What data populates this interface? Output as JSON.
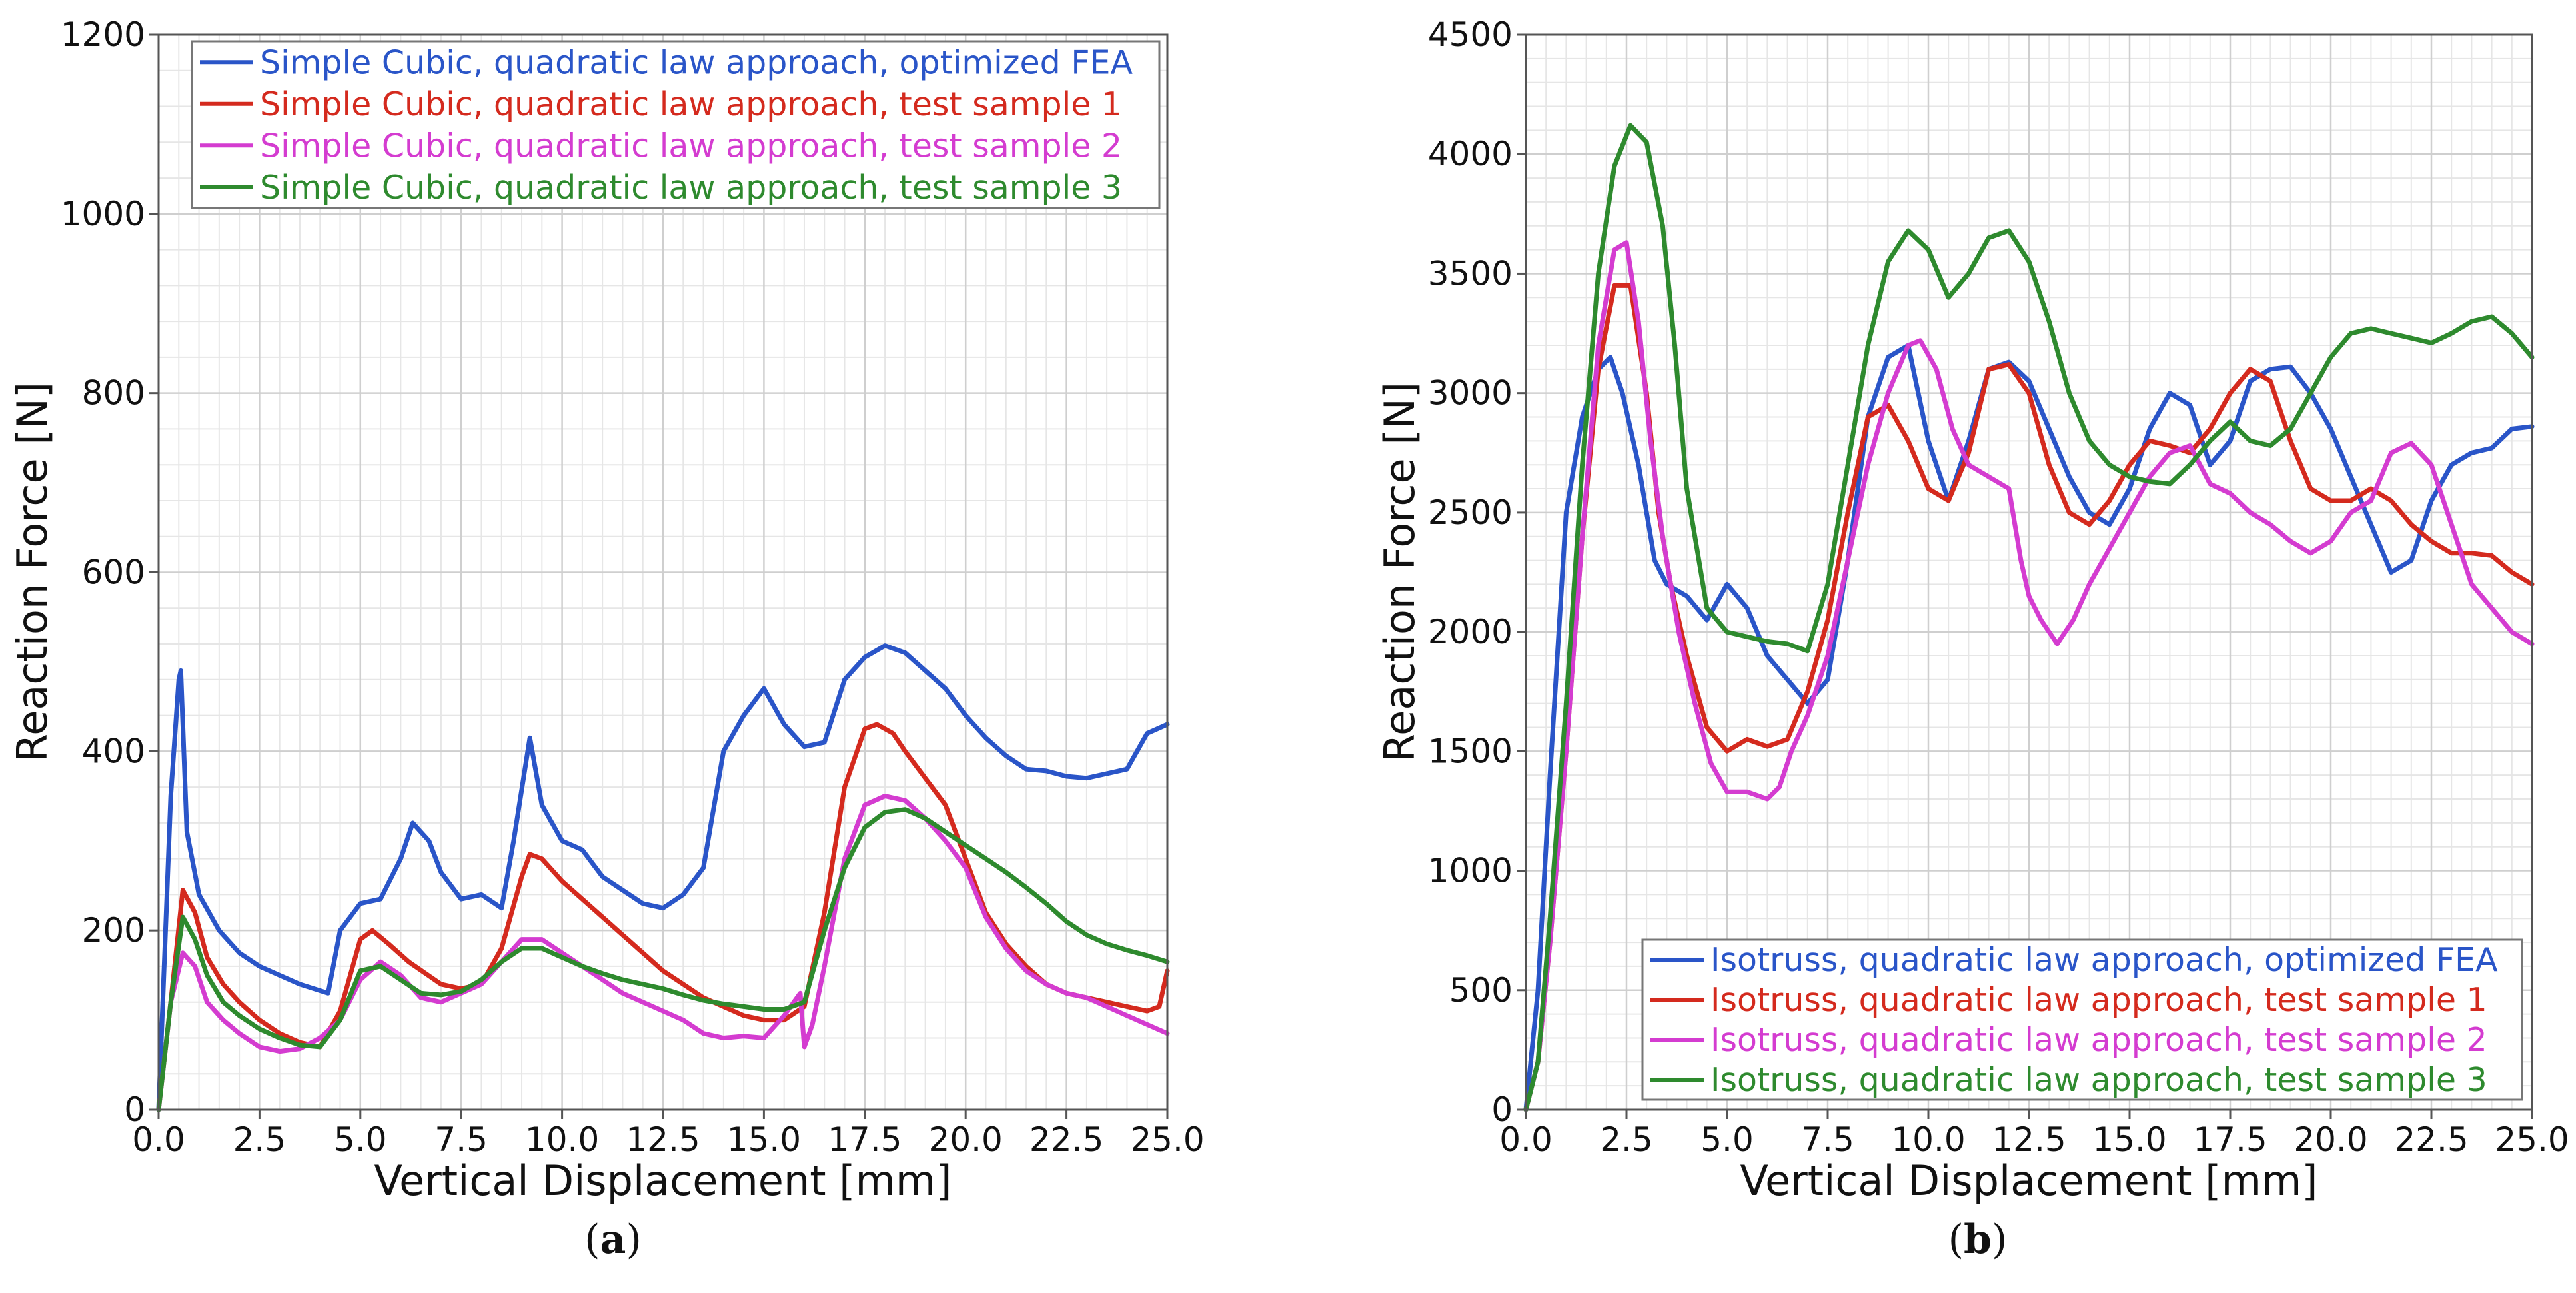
{
  "chart_data": [
    {
      "type": "line",
      "panel_label": "a",
      "xlabel": "Vertical Displacement [mm]",
      "ylabel": "Reaction Force [N]",
      "xlim": [
        0,
        25
      ],
      "ylim": [
        0,
        1200
      ],
      "xticks": [
        "0.0",
        "2.5",
        "5.0",
        "7.5",
        "10.0",
        "12.5",
        "15.0",
        "17.5",
        "20.0",
        "22.5",
        "25.0"
      ],
      "yticks": [
        "0",
        "200",
        "400",
        "600",
        "800",
        "1000",
        "1200"
      ],
      "grid": true,
      "legend_position": "top-right",
      "series": [
        {
          "name": "Simple Cubic, quadratic law approach, optimized FEA",
          "color": "#2a55c8",
          "x": [
            0,
            0.3,
            0.5,
            0.55,
            0.7,
            1.0,
            1.5,
            2.0,
            2.5,
            3.0,
            3.5,
            4.2,
            4.5,
            5.0,
            5.5,
            6.0,
            6.3,
            6.7,
            7.0,
            7.5,
            8.0,
            8.5,
            8.8,
            9.2,
            9.5,
            10.0,
            10.5,
            11.0,
            11.5,
            12.0,
            12.5,
            13.0,
            13.5,
            14.0,
            14.5,
            15.0,
            15.5,
            16.0,
            16.5,
            17.0,
            17.5,
            18.0,
            18.5,
            19.0,
            19.5,
            20.0,
            20.5,
            21.0,
            21.5,
            22.0,
            22.5,
            23.0,
            23.5,
            24.0,
            24.5,
            25.0
          ],
          "y": [
            0,
            350,
            480,
            490,
            310,
            240,
            200,
            175,
            160,
            150,
            140,
            130,
            200,
            230,
            235,
            280,
            320,
            300,
            265,
            235,
            240,
            225,
            300,
            415,
            340,
            300,
            290,
            260,
            245,
            230,
            225,
            240,
            270,
            400,
            440,
            470,
            430,
            405,
            410,
            480,
            505,
            518,
            510,
            490,
            470,
            440,
            415,
            395,
            380,
            378,
            372,
            370,
            375,
            380,
            420,
            430
          ]
        },
        {
          "name": "Simple Cubic, quadratic law approach, test sample 1",
          "color": "#d42a1e",
          "x": [
            0,
            0.3,
            0.6,
            0.9,
            1.2,
            1.6,
            2.0,
            2.5,
            3.0,
            3.5,
            4.0,
            4.5,
            5.0,
            5.3,
            5.7,
            6.2,
            7.0,
            7.5,
            8.0,
            8.5,
            9.0,
            9.2,
            9.5,
            10.0,
            10.5,
            11.0,
            11.5,
            12.0,
            12.5,
            13.0,
            13.5,
            14.0,
            14.5,
            15.0,
            15.5,
            16.0,
            16.5,
            17.0,
            17.5,
            17.8,
            18.2,
            18.5,
            19.0,
            19.5,
            20.0,
            20.5,
            21.0,
            21.5,
            22.0,
            22.5,
            23.0,
            23.5,
            24.0,
            24.5,
            24.8,
            25.0
          ],
          "y": [
            0,
            120,
            245,
            220,
            170,
            140,
            120,
            100,
            85,
            75,
            70,
            110,
            190,
            200,
            185,
            165,
            140,
            135,
            140,
            180,
            260,
            285,
            280,
            255,
            235,
            215,
            195,
            175,
            155,
            140,
            125,
            115,
            105,
            100,
            100,
            115,
            220,
            360,
            425,
            430,
            420,
            400,
            370,
            340,
            280,
            220,
            185,
            160,
            140,
            130,
            125,
            120,
            115,
            110,
            115,
            155
          ]
        },
        {
          "name": "Simple Cubic, quadratic law approach, test sample 2",
          "color": "#d43cd0",
          "x": [
            0,
            0.3,
            0.6,
            0.9,
            1.2,
            1.6,
            2.0,
            2.5,
            3.0,
            3.5,
            4.0,
            4.5,
            5.0,
            5.5,
            6.0,
            6.5,
            7.0,
            7.5,
            8.0,
            8.5,
            9.0,
            9.5,
            10.0,
            10.5,
            11.0,
            11.5,
            12.0,
            12.5,
            13.0,
            13.5,
            14.0,
            14.5,
            15.0,
            15.5,
            15.9,
            16.0,
            16.2,
            16.5,
            17.0,
            17.5,
            18.0,
            18.5,
            19.0,
            19.5,
            20.0,
            20.5,
            21.0,
            21.5,
            22.0,
            22.5,
            23.0,
            23.5,
            24.0,
            24.5,
            25.0
          ],
          "y": [
            0,
            120,
            175,
            160,
            120,
            100,
            85,
            70,
            65,
            68,
            80,
            100,
            145,
            165,
            150,
            125,
            120,
            130,
            140,
            165,
            190,
            190,
            175,
            160,
            145,
            130,
            120,
            110,
            100,
            85,
            80,
            82,
            80,
            105,
            130,
            70,
            95,
            160,
            280,
            340,
            350,
            345,
            325,
            300,
            270,
            215,
            180,
            155,
            140,
            130,
            125,
            115,
            105,
            95,
            85
          ]
        },
        {
          "name": "Simple Cubic, quadratic law approach, test sample 3",
          "color": "#2e8a2e",
          "x": [
            0,
            0.3,
            0.6,
            0.9,
            1.2,
            1.6,
            2.0,
            2.5,
            3.0,
            3.5,
            4.0,
            4.5,
            5.0,
            5.5,
            6.0,
            6.5,
            7.0,
            7.5,
            8.0,
            8.5,
            9.0,
            9.5,
            10.0,
            10.5,
            11.0,
            11.5,
            12.0,
            12.5,
            13.0,
            13.5,
            14.0,
            14.5,
            15.0,
            15.5,
            16.0,
            16.5,
            17.0,
            17.5,
            18.0,
            18.5,
            19.0,
            19.5,
            20.0,
            20.5,
            21.0,
            21.5,
            22.0,
            22.5,
            23.0,
            23.5,
            24.0,
            24.5,
            25.0
          ],
          "y": [
            0,
            120,
            215,
            190,
            150,
            120,
            105,
            90,
            80,
            72,
            70,
            100,
            155,
            160,
            145,
            130,
            128,
            132,
            145,
            165,
            180,
            180,
            170,
            160,
            152,
            145,
            140,
            135,
            128,
            122,
            118,
            115,
            112,
            112,
            120,
            200,
            270,
            315,
            332,
            335,
            325,
            310,
            295,
            280,
            265,
            248,
            230,
            210,
            195,
            185,
            178,
            172,
            165
          ]
        }
      ]
    },
    {
      "type": "line",
      "panel_label": "b",
      "xlabel": "Vertical Displacement [mm]",
      "ylabel": "Reaction Force [N]",
      "xlim": [
        0,
        25
      ],
      "ylim": [
        0,
        4500
      ],
      "xticks": [
        "0.0",
        "2.5",
        "5.0",
        "7.5",
        "10.0",
        "12.5",
        "15.0",
        "17.5",
        "20.0",
        "22.5",
        "25.0"
      ],
      "yticks": [
        "0",
        "500",
        "1000",
        "1500",
        "2000",
        "2500",
        "3000",
        "3500",
        "4000",
        "4500"
      ],
      "grid": true,
      "legend_position": "bottom-right",
      "series": [
        {
          "name": "Isotruss, quadratic law approach, optimized FEA",
          "color": "#2a55c8",
          "x": [
            0,
            0.3,
            0.6,
            1.0,
            1.4,
            1.8,
            2.1,
            2.4,
            2.8,
            3.2,
            3.5,
            4.0,
            4.5,
            5.0,
            5.5,
            6.0,
            6.5,
            7.0,
            7.5,
            8.0,
            8.5,
            9.0,
            9.5,
            10.0,
            10.5,
            11.0,
            11.5,
            12.0,
            12.5,
            13.0,
            13.5,
            14.0,
            14.5,
            15.0,
            15.5,
            16.0,
            16.5,
            17.0,
            17.5,
            18.0,
            18.5,
            19.0,
            19.5,
            20.0,
            20.5,
            21.0,
            21.5,
            22.0,
            22.5,
            23.0,
            23.5,
            24.0,
            24.5,
            25.0
          ],
          "y": [
            0,
            500,
            1400,
            2500,
            2900,
            3100,
            3150,
            3000,
            2700,
            2300,
            2200,
            2150,
            2050,
            2200,
            2100,
            1900,
            1800,
            1700,
            1800,
            2300,
            2900,
            3150,
            3200,
            2800,
            2550,
            2800,
            3100,
            3130,
            3050,
            2850,
            2650,
            2500,
            2450,
            2600,
            2850,
            3000,
            2950,
            2700,
            2800,
            3050,
            3100,
            3110,
            3000,
            2850,
            2650,
            2450,
            2250,
            2300,
            2550,
            2700,
            2750,
            2770,
            2850,
            2860
          ]
        },
        {
          "name": "Isotruss, quadratic law approach, test sample 1",
          "color": "#d42a1e",
          "x": [
            0,
            0.3,
            0.6,
            1.0,
            1.4,
            1.8,
            2.2,
            2.6,
            3.0,
            3.3,
            3.6,
            4.0,
            4.5,
            5.0,
            5.5,
            6.0,
            6.5,
            7.0,
            7.5,
            8.0,
            8.5,
            9.0,
            9.5,
            10.0,
            10.5,
            11.0,
            11.5,
            12.0,
            12.5,
            13.0,
            13.5,
            14.0,
            14.5,
            15.0,
            15.5,
            16.0,
            16.5,
            17.0,
            17.5,
            18.0,
            18.5,
            19.0,
            19.5,
            20.0,
            20.5,
            21.0,
            21.5,
            22.0,
            22.5,
            23.0,
            23.5,
            24.0,
            24.5,
            25.0
          ],
          "y": [
            0,
            200,
            700,
            1500,
            2400,
            3100,
            3450,
            3450,
            3000,
            2500,
            2200,
            1900,
            1600,
            1500,
            1550,
            1520,
            1550,
            1750,
            2050,
            2500,
            2900,
            2950,
            2800,
            2600,
            2550,
            2750,
            3100,
            3120,
            3000,
            2700,
            2500,
            2450,
            2550,
            2700,
            2800,
            2780,
            2750,
            2850,
            3000,
            3100,
            3050,
            2800,
            2600,
            2550,
            2550,
            2600,
            2550,
            2450,
            2380,
            2330,
            2330,
            2320,
            2250,
            2200
          ]
        },
        {
          "name": "Isotruss, quadratic law approach, test sample 2",
          "color": "#d43cd0",
          "x": [
            0,
            0.3,
            0.6,
            1.0,
            1.4,
            1.8,
            2.2,
            2.5,
            2.8,
            3.1,
            3.4,
            3.8,
            4.2,
            4.6,
            5.0,
            5.5,
            6.0,
            6.3,
            6.6,
            7.0,
            7.5,
            8.0,
            8.5,
            9.0,
            9.5,
            9.8,
            10.2,
            10.6,
            11.0,
            11.5,
            12.0,
            12.3,
            12.5,
            12.8,
            13.2,
            13.6,
            14.0,
            14.5,
            15.0,
            15.5,
            16.0,
            16.5,
            17.0,
            17.5,
            18.0,
            18.5,
            19.0,
            19.5,
            20.0,
            20.5,
            21.0,
            21.5,
            22.0,
            22.5,
            23.0,
            23.5,
            24.0,
            24.5,
            25.0
          ],
          "y": [
            0,
            200,
            700,
            1500,
            2400,
            3200,
            3600,
            3630,
            3300,
            2800,
            2400,
            2000,
            1700,
            1450,
            1330,
            1330,
            1300,
            1350,
            1500,
            1650,
            1900,
            2300,
            2700,
            3000,
            3200,
            3220,
            3100,
            2850,
            2700,
            2650,
            2600,
            2300,
            2150,
            2050,
            1950,
            2050,
            2200,
            2350,
            2500,
            2650,
            2750,
            2780,
            2620,
            2580,
            2500,
            2450,
            2380,
            2330,
            2380,
            2500,
            2550,
            2750,
            2790,
            2700,
            2450,
            2200,
            2100,
            2000,
            1950
          ]
        },
        {
          "name": "Isotruss, quadratic law approach, test sample 3",
          "color": "#2e8a2e",
          "x": [
            0,
            0.3,
            0.6,
            1.0,
            1.4,
            1.8,
            2.2,
            2.6,
            3.0,
            3.4,
            3.7,
            4.0,
            4.5,
            5.0,
            5.5,
            6.0,
            6.5,
            7.0,
            7.5,
            8.0,
            8.5,
            9.0,
            9.5,
            10.0,
            10.5,
            11.0,
            11.5,
            12.0,
            12.5,
            13.0,
            13.5,
            14.0,
            14.5,
            15.0,
            15.5,
            16.0,
            16.5,
            17.0,
            17.5,
            18.0,
            18.5,
            19.0,
            19.5,
            20.0,
            20.5,
            21.0,
            21.5,
            22.0,
            22.5,
            23.0,
            23.5,
            24.0,
            24.5,
            25.0
          ],
          "y": [
            0,
            200,
            800,
            1700,
            2700,
            3500,
            3950,
            4120,
            4050,
            3700,
            3200,
            2600,
            2100,
            2000,
            1980,
            1960,
            1950,
            1920,
            2200,
            2700,
            3200,
            3550,
            3680,
            3600,
            3400,
            3500,
            3650,
            3680,
            3550,
            3300,
            3000,
            2800,
            2700,
            2650,
            2630,
            2620,
            2700,
            2800,
            2880,
            2800,
            2780,
            2850,
            3000,
            3150,
            3250,
            3270,
            3250,
            3230,
            3210,
            3250,
            3300,
            3320,
            3250,
            3150
          ]
        }
      ]
    }
  ]
}
